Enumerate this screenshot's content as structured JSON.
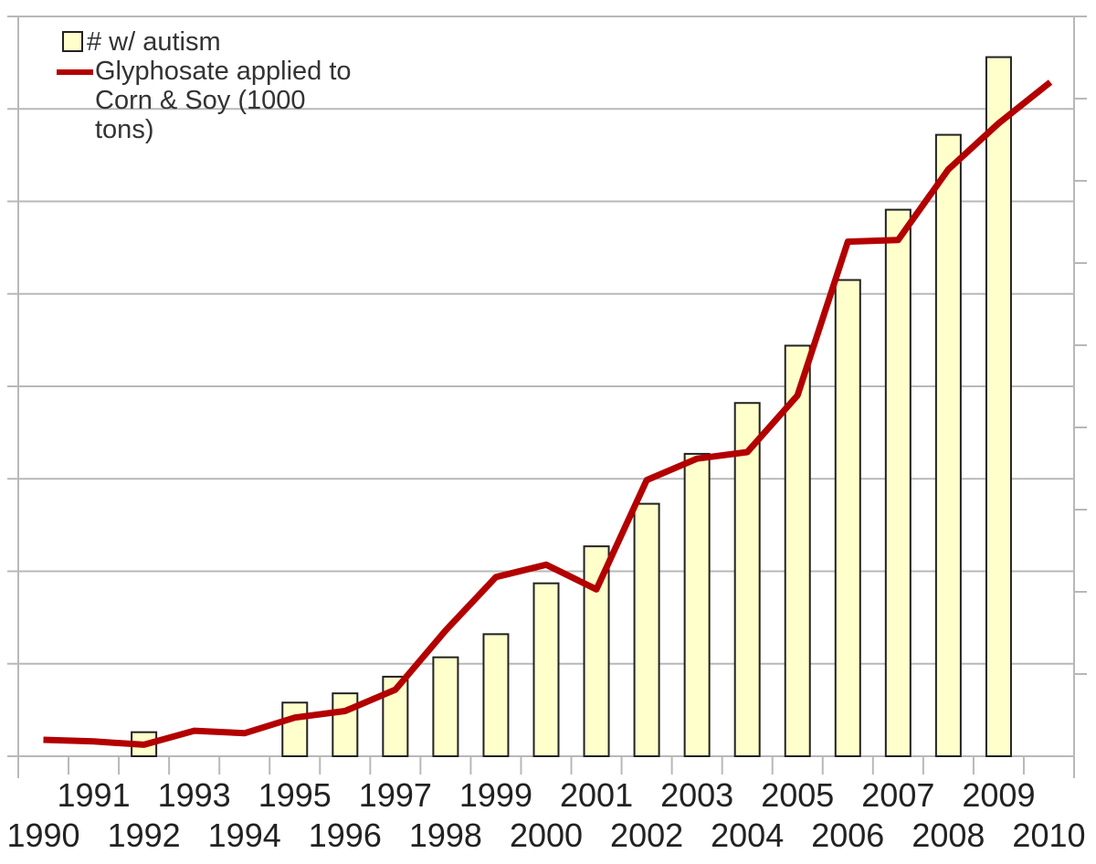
{
  "chart_data": {
    "type": "bar+line",
    "title": "",
    "xlabel": "",
    "ylabel_left": "",
    "ylabel_right": "",
    "categories": [
      "1990",
      "1991",
      "1992",
      "1993",
      "1994",
      "1995",
      "1996",
      "1997",
      "1998",
      "1999",
      "2000",
      "2001",
      "2002",
      "2003",
      "2004",
      "2005",
      "2006",
      "2007",
      "2008",
      "2009",
      "2010"
    ],
    "x_label_rows": {
      "top": [
        "1991",
        "1993",
        "1995",
        "1997",
        "1999",
        "2001",
        "2003",
        "2005",
        "2007",
        "2009"
      ],
      "bottom": [
        "1990",
        "1992",
        "1994",
        "1996",
        "1998",
        "2000",
        "2002",
        "2004",
        "2006",
        "2008",
        "2010"
      ]
    },
    "series": [
      {
        "name": "# w/ autism",
        "type": "bar",
        "axis": "left",
        "color": "#ffffcc",
        "stroke": "#222222",
        "values": [
          null,
          null,
          0.26,
          null,
          null,
          0.58,
          0.68,
          0.86,
          1.07,
          1.32,
          1.87,
          2.27,
          2.73,
          3.27,
          3.82,
          4.44,
          5.15,
          5.91,
          6.72,
          7.56,
          null
        ]
      },
      {
        "name": "Glyphosate applied to Corn & Soy (1000 tons)",
        "type": "line",
        "axis": "right",
        "color": "#b30000",
        "values": [
          0.2,
          0.18,
          0.14,
          0.31,
          0.28,
          0.47,
          0.55,
          0.81,
          1.53,
          2.18,
          2.33,
          2.03,
          3.36,
          3.62,
          3.7,
          4.39,
          6.26,
          6.28,
          7.14,
          7.7,
          8.2
        ]
      }
    ],
    "axes": {
      "left": {
        "min": 0,
        "max": 8,
        "gridlines": 8,
        "tick_labels_visible": false
      },
      "right": {
        "min": 0,
        "max": 9,
        "ticks": 9,
        "tick_labels_visible": false
      }
    },
    "grid": true,
    "legend_position": "top-left"
  },
  "legend": {
    "bar_label": "# w/ autism",
    "line_label": "Glyphosate applied to\nCorn & Soy (1000\ntons)"
  }
}
